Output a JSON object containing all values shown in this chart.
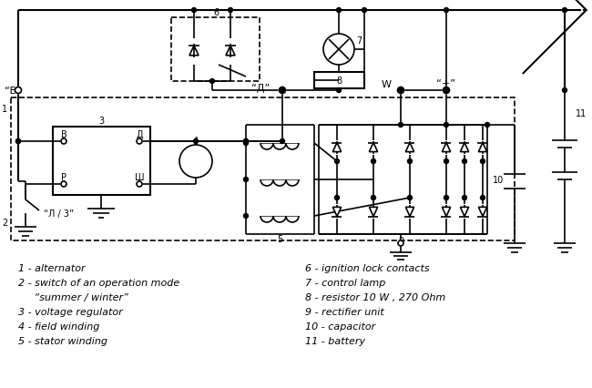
{
  "bg_color": "#ffffff",
  "line_color": "#000000",
  "legend_left": [
    "1 - alternator",
    "2 - switch of an operation mode",
    "     “summer / winter”",
    "3 - voltage regulator",
    "4 - field winding",
    "5 - stator winding"
  ],
  "legend_right": [
    "6 - ignition lock contacts",
    "7 - control lamp",
    "8 - resistor 10 W , 270 Ohm",
    "9 - rectifier unit",
    "10 - capacitor",
    "11 - battery"
  ],
  "label_V": "“B”",
  "label_D": "“Д”",
  "label_W": "W",
  "label_plus": "“+”",
  "label_lz": "“Л / 3”",
  "label_B": "B",
  "label_Dp": "Д",
  "label_P": "P",
  "label_Sh": "Ш"
}
